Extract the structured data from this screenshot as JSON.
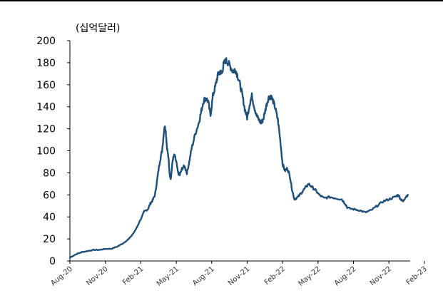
{
  "chart_data": {
    "type": "line",
    "unit_label": "(십억달러)",
    "ylim": [
      0,
      200
    ],
    "y_ticks": [
      0,
      20,
      40,
      60,
      80,
      100,
      120,
      140,
      160,
      180,
      200
    ],
    "x_tick_labels": [
      "Aug-20",
      "Nov-20",
      "Feb-21",
      "May-21",
      "Aug-21",
      "Nov-21",
      "Feb-22",
      "May-22",
      "Aug-22",
      "Nov-22",
      "Feb-23"
    ],
    "grid": false,
    "legend": "none",
    "line_color": "#1f4e79",
    "series": [
      {
        "values": [
          [
            0,
            3
          ],
          [
            0.5,
            6
          ],
          [
            1.0,
            8
          ],
          [
            1.5,
            9
          ],
          [
            2.0,
            10
          ],
          [
            2.5,
            10
          ],
          [
            3.0,
            11
          ],
          [
            3.5,
            11
          ],
          [
            4.0,
            13
          ],
          [
            4.5,
            16
          ],
          [
            5.0,
            20
          ],
          [
            5.5,
            27
          ],
          [
            6.0,
            38
          ],
          [
            6.3,
            45
          ],
          [
            6.6,
            47
          ],
          [
            6.8,
            52
          ],
          [
            7.0,
            55
          ],
          [
            7.2,
            60
          ],
          [
            7.4,
            75
          ],
          [
            7.6,
            90
          ],
          [
            7.8,
            100
          ],
          [
            8.0,
            122
          ],
          [
            8.1,
            120
          ],
          [
            8.2,
            105
          ],
          [
            8.35,
            92
          ],
          [
            8.45,
            78
          ],
          [
            8.55,
            75
          ],
          [
            8.7,
            92
          ],
          [
            8.85,
            96
          ],
          [
            9.0,
            90
          ],
          [
            9.15,
            80
          ],
          [
            9.3,
            78
          ],
          [
            9.5,
            84
          ],
          [
            9.7,
            86
          ],
          [
            9.9,
            80
          ],
          [
            10.1,
            90
          ],
          [
            10.3,
            102
          ],
          [
            10.6,
            115
          ],
          [
            10.9,
            125
          ],
          [
            11.1,
            135
          ],
          [
            11.3,
            145
          ],
          [
            11.5,
            148
          ],
          [
            11.7,
            145
          ],
          [
            11.9,
            132
          ],
          [
            12.1,
            150
          ],
          [
            12.3,
            158
          ],
          [
            12.5,
            168
          ],
          [
            12.7,
            172
          ],
          [
            12.85,
            170
          ],
          [
            13.0,
            178
          ],
          [
            13.2,
            182
          ],
          [
            13.4,
            180
          ],
          [
            13.6,
            176
          ],
          [
            13.8,
            172
          ],
          [
            14.0,
            174
          ],
          [
            14.2,
            168
          ],
          [
            14.4,
            160
          ],
          [
            14.6,
            150
          ],
          [
            14.8,
            138
          ],
          [
            15.0,
            130
          ],
          [
            15.2,
            142
          ],
          [
            15.4,
            150
          ],
          [
            15.6,
            140
          ],
          [
            15.8,
            132
          ],
          [
            16.0,
            128
          ],
          [
            16.2,
            125
          ],
          [
            16.4,
            130
          ],
          [
            16.6,
            140
          ],
          [
            16.8,
            148
          ],
          [
            17.0,
            150
          ],
          [
            17.2,
            145
          ],
          [
            17.4,
            138
          ],
          [
            17.6,
            128
          ],
          [
            17.8,
            110
          ],
          [
            18.0,
            88
          ],
          [
            18.2,
            82
          ],
          [
            18.4,
            84
          ],
          [
            18.6,
            78
          ],
          [
            18.8,
            65
          ],
          [
            19.0,
            56
          ],
          [
            19.3,
            58
          ],
          [
            19.6,
            62
          ],
          [
            19.9,
            66
          ],
          [
            20.2,
            70
          ],
          [
            20.5,
            67
          ],
          [
            20.8,
            64
          ],
          [
            21.1,
            60
          ],
          [
            21.5,
            57
          ],
          [
            22.0,
            58
          ],
          [
            22.5,
            57
          ],
          [
            23.0,
            56
          ],
          [
            23.3,
            52
          ],
          [
            23.5,
            48
          ],
          [
            24.0,
            47
          ],
          [
            24.5,
            46
          ],
          [
            25.0,
            44
          ],
          [
            25.5,
            46
          ],
          [
            26.0,
            50
          ],
          [
            26.5,
            54
          ],
          [
            27.0,
            56
          ],
          [
            27.5,
            58
          ],
          [
            27.8,
            60
          ],
          [
            28.0,
            56
          ],
          [
            28.2,
            54
          ],
          [
            28.4,
            58
          ],
          [
            28.6,
            60
          ]
        ]
      }
    ]
  }
}
